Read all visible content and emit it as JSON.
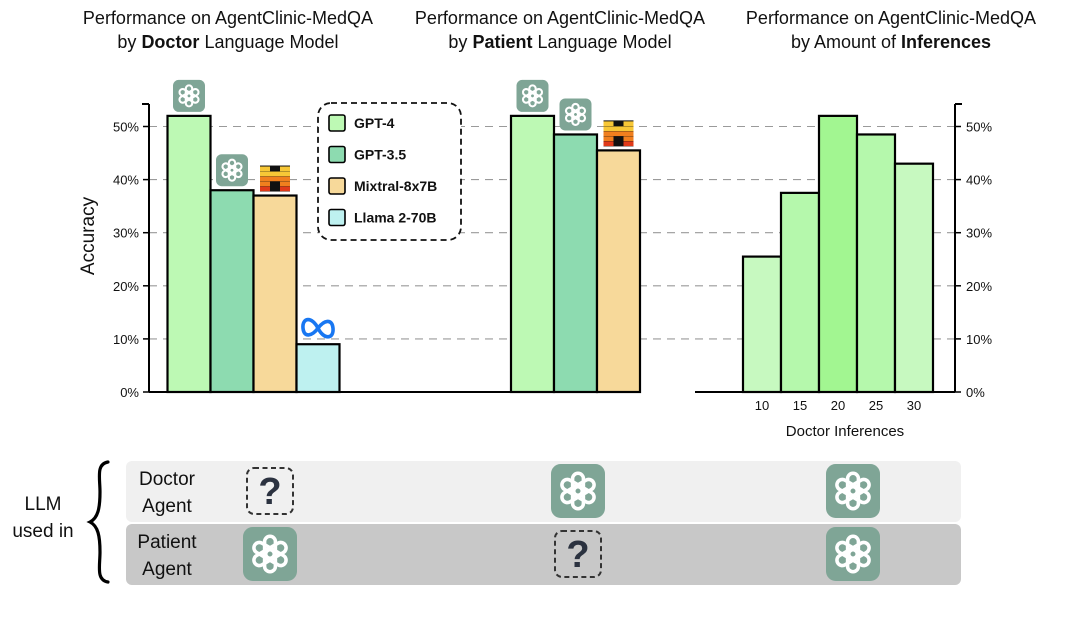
{
  "chart_data": [
    {
      "type": "bar",
      "title_lines": [
        "Performance on AgentClinic-MedQA",
        "by |Doctor| Language Model"
      ],
      "ylabel": "Accuracy",
      "ylim": [
        0,
        55
      ],
      "y_ticks": [
        "0%",
        "10%",
        "20%",
        "30%",
        "40%",
        "50%"
      ],
      "grid": true,
      "categories": [
        "GPT-4",
        "GPT-3.5",
        "Mixtral-8x7B",
        "Llama 2-70B"
      ],
      "values": [
        52,
        38,
        37,
        9
      ],
      "colors": [
        "#bdf9b4",
        "#8ddbb0",
        "#f7d99a",
        "#bef1f0"
      ],
      "icons": [
        "openai-icon",
        "openai-icon",
        "mistral-icon",
        "meta-icon"
      ]
    },
    {
      "type": "bar",
      "title_lines": [
        "Performance on AgentClinic-MedQA",
        "by |Patient| Language Model"
      ],
      "ylim": [
        0,
        55
      ],
      "grid": true,
      "categories": [
        "GPT-4",
        "GPT-3.5",
        "Mixtral-8x7B"
      ],
      "values": [
        52,
        48.5,
        45.5
      ],
      "colors": [
        "#bdf9b4",
        "#8ddbb0",
        "#f7d99a"
      ],
      "icons": [
        "openai-icon",
        "openai-icon",
        "mistral-icon"
      ]
    },
    {
      "type": "bar",
      "title_lines": [
        "Performance on AgentClinic-MedQA",
        "by Amount of |Inferences|"
      ],
      "xlabel": "Doctor Inferences",
      "ylim": [
        0,
        55
      ],
      "y_ticks": [
        "0%",
        "10%",
        "20%",
        "30%",
        "40%",
        "50%"
      ],
      "grid": true,
      "categories": [
        "10",
        "15",
        "20",
        "25",
        "30"
      ],
      "values": [
        25.5,
        37.5,
        52,
        48.5,
        43
      ],
      "colors": [
        "#c7f9c0",
        "#b5f8ac",
        "#a2f691",
        "#b5f8ac",
        "#c7f9c0"
      ]
    }
  ],
  "legend": {
    "placement": "top-center",
    "items": [
      {
        "label": "GPT-4",
        "color": "#bdf9b4"
      },
      {
        "label": "GPT-3.5",
        "color": "#8ddbb0"
      },
      {
        "label": "Mixtral-8x7B",
        "color": "#f7d99a"
      },
      {
        "label": "Llama 2-70B",
        "color": "#bef1f0"
      }
    ]
  },
  "table": {
    "group_label": [
      "LLM",
      "used in"
    ],
    "rows": [
      {
        "label": [
          "Doctor",
          "Agent"
        ],
        "cells": [
          "unknown",
          "openai",
          "openai"
        ],
        "bg": "#f0f0f0"
      },
      {
        "label": [
          "Patient",
          "Agent"
        ],
        "cells": [
          "openai",
          "unknown",
          "openai"
        ],
        "bg": "#c8c8c8"
      }
    ],
    "question_mark": "?"
  },
  "colors": {
    "icon_green": "#7fa596",
    "grid": "#9a9a9a",
    "mistral_dark": "#e03a1a",
    "mistral_mid": "#f07f1e",
    "mistral_light": "#f7c736",
    "meta_blue": "#1877f2"
  }
}
